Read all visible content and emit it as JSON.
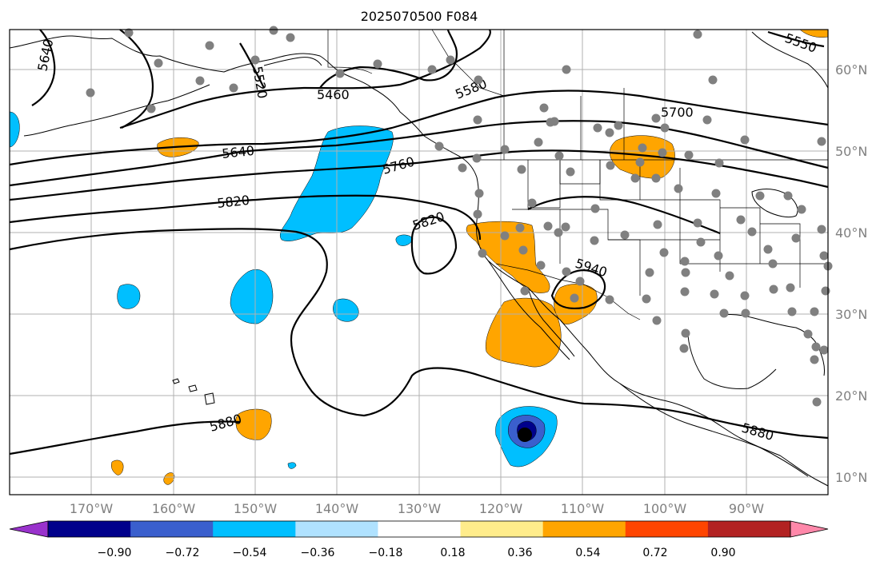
{
  "title": "2025070500 F084",
  "lat_labels": [
    "60°N",
    "50°N",
    "40°N",
    "30°N",
    "20°N",
    "10°N"
  ],
  "lon_labels": [
    "170°W",
    "160°W",
    "150°W",
    "140°W",
    "130°W",
    "120°W",
    "110°W",
    "100°W",
    "90°W"
  ],
  "contour_labels": [
    "5640",
    "5520",
    "5460",
    "5580",
    "5550",
    "5700",
    "5640",
    "5760",
    "5820",
    "5820",
    "5940",
    "5880",
    "5880"
  ],
  "colorbar": {
    "ticks": [
      "−0.90",
      "−0.72",
      "−0.54",
      "−0.36",
      "−0.18",
      "0.18",
      "0.36",
      "0.54",
      "0.72",
      "0.90"
    ],
    "colors": [
      "#9932cc",
      "#00008b",
      "#3a5fcd",
      "#00bfff",
      "#b0e2ff",
      "#ffffff",
      "#ffec8b",
      "#ffa500",
      "#ff4500",
      "#b22222",
      "#ff88aa"
    ]
  },
  "shading_colors": {
    "negative_light": "#00bfff",
    "negative_mid": "#3a5fcd",
    "negative_strong": "#00008b",
    "positive": "#ffa500"
  },
  "station_color": "#808080",
  "storm_marker_color": "#000000"
}
